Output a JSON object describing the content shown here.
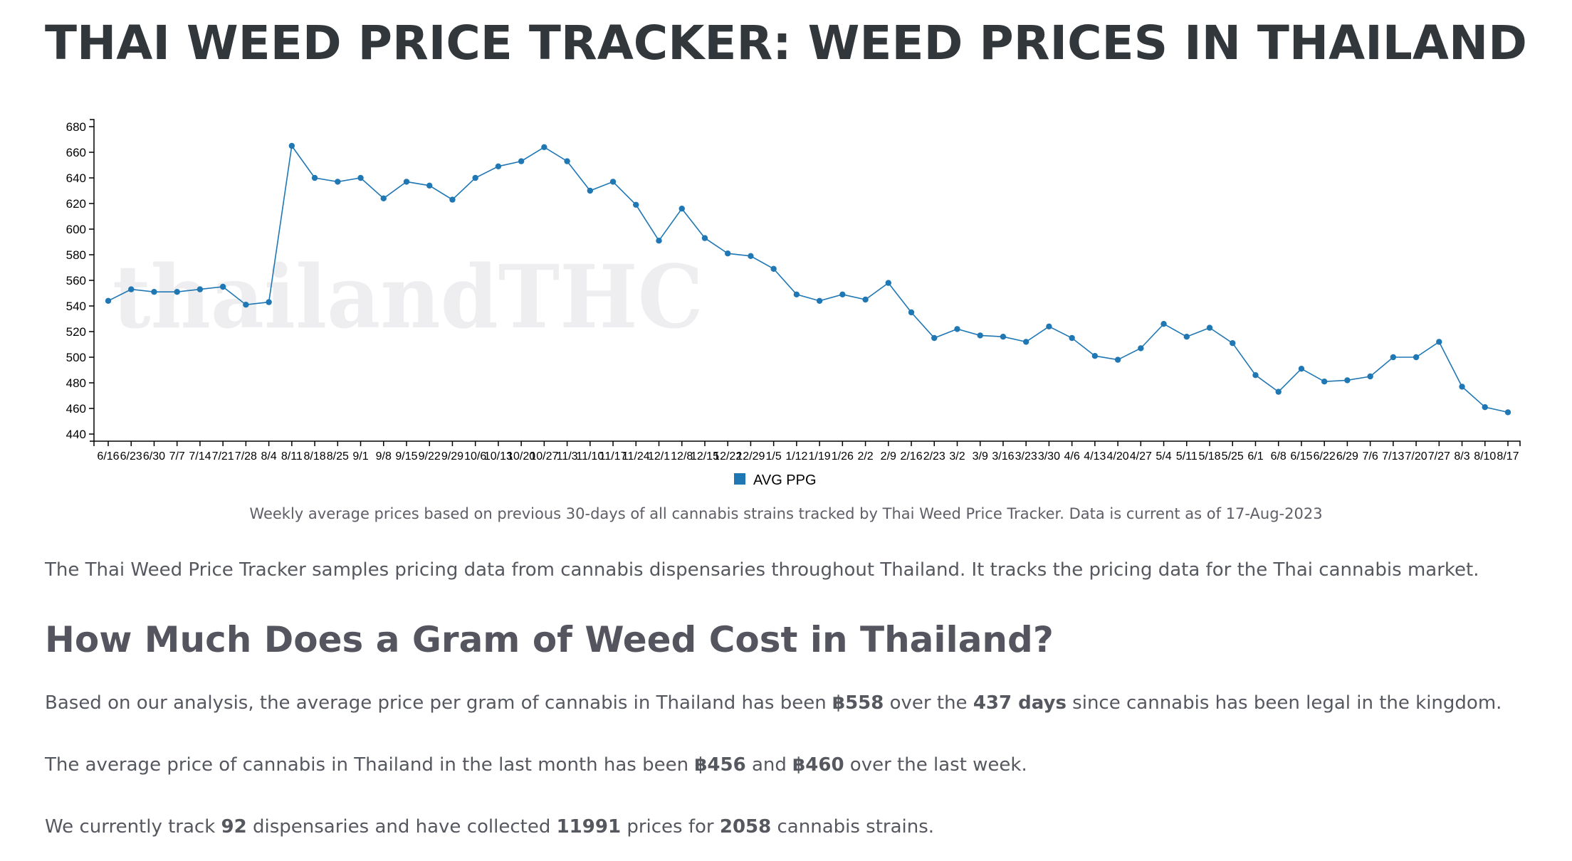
{
  "page": {
    "title": "THAI WEED PRICE TRACKER: WEED PRICES IN THAILAND",
    "watermark": "thailandTHC",
    "caption": "Weekly average prices based on previous 30-days of all cannabis strains tracked by Thai Weed Price Tracker. Data is current as of 17-Aug-2023",
    "intro": "The Thai Weed Price Tracker samples pricing data from cannabis dispensaries throughout Thailand. It tracks the pricing data for the Thai cannabis market.",
    "section_heading": "How Much Does a Gram of Weed Cost in Thailand?",
    "p1": {
      "pre": "Based on our analysis, the average price per gram of cannabis in Thailand has been ",
      "avg": "฿558",
      "mid": " over the ",
      "days": "437 days",
      "post": " since cannabis has been legal in the kingdom."
    },
    "p2": {
      "pre": "The average price of cannabis in Thailand in the last month has been ",
      "month": "฿456",
      "mid": " and ",
      "week": "฿460",
      "post": " over the last week."
    },
    "p3": {
      "pre": "We currently track ",
      "dispensaries": "92",
      "mid1": " dispensaries and have collected ",
      "prices": "11991",
      "mid2": " prices for ",
      "strains": "2058",
      "post": " cannabis strains."
    }
  },
  "chart_data": {
    "type": "line",
    "categories": [
      "6/16",
      "6/23",
      "6/30",
      "7/7",
      "7/14",
      "7/21",
      "7/28",
      "8/4",
      "8/11",
      "8/18",
      "8/25",
      "9/1",
      "9/8",
      "9/15",
      "9/22",
      "9/29",
      "10/6",
      "10/13",
      "10/20",
      "10/27",
      "11/3",
      "11/10",
      "11/17",
      "11/24",
      "12/1",
      "12/8",
      "12/15",
      "12/22",
      "12/29",
      "1/5",
      "1/12",
      "1/19",
      "1/26",
      "2/2",
      "2/9",
      "2/16",
      "2/23",
      "3/2",
      "3/9",
      "3/16",
      "3/23",
      "3/30",
      "4/6",
      "4/13",
      "4/20",
      "4/27",
      "5/4",
      "5/11",
      "5/18",
      "5/25",
      "6/1",
      "6/8",
      "6/15",
      "6/22",
      "6/29",
      "7/6",
      "7/13",
      "7/20",
      "7/27",
      "8/3",
      "8/10",
      "8/17"
    ],
    "series": [
      {
        "name": "AVG PPG",
        "color": "#1f77b4",
        "values": [
          544,
          553,
          551,
          551,
          553,
          555,
          541,
          543,
          665,
          640,
          637,
          640,
          624,
          637,
          634,
          623,
          640,
          649,
          653,
          664,
          653,
          630,
          637,
          619,
          591,
          616,
          593,
          581,
          579,
          569,
          549,
          544,
          549,
          545,
          558,
          535,
          515,
          522,
          517,
          516,
          512,
          524,
          515,
          501,
          498,
          507,
          526,
          516,
          523,
          511,
          486,
          473,
          491,
          481,
          482,
          485,
          500,
          500,
          512,
          477,
          461,
          457
        ]
      }
    ],
    "ylim": [
      440,
      680
    ],
    "yticks": [
      440,
      460,
      480,
      500,
      520,
      540,
      560,
      580,
      600,
      620,
      640,
      660,
      680
    ],
    "legend": "bottom-center"
  }
}
